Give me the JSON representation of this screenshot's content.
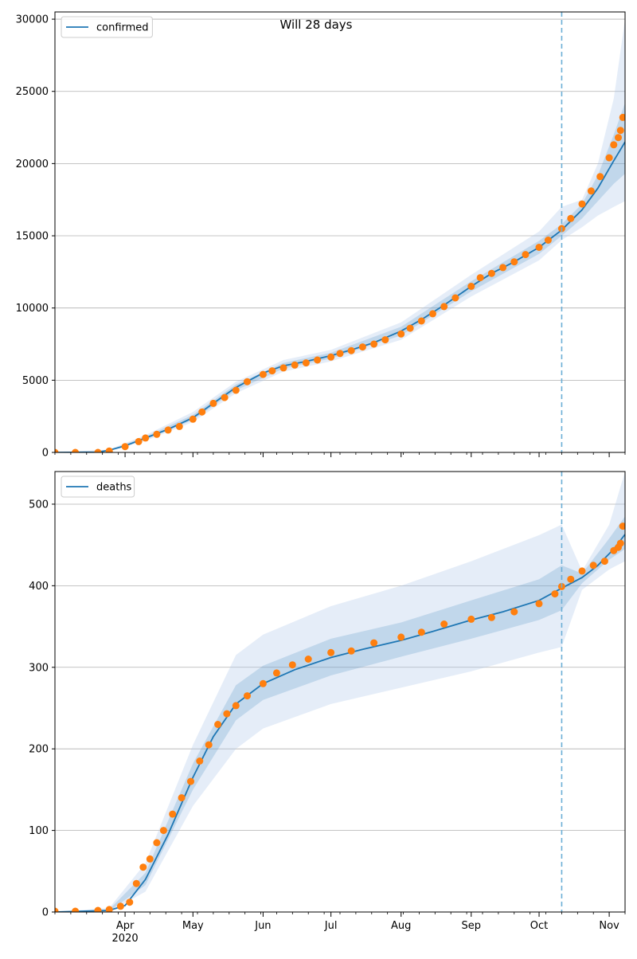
{
  "figure": {
    "suptitle": "Will 28 days"
  },
  "chart_data": [
    {
      "type": "line",
      "panel": "top",
      "title": "",
      "xlabel": "",
      "ylabel": "",
      "xlim": [
        "2020-03-01",
        "2020-11-08"
      ],
      "ylim": [
        0,
        30500
      ],
      "yticks": [
        0,
        5000,
        10000,
        15000,
        20000,
        25000,
        30000
      ],
      "ytick_labels": [
        "0",
        "5000",
        "10000",
        "15000",
        "20000",
        "25000",
        "30000"
      ],
      "grid": "horizontal",
      "legend": {
        "placement": "top-left",
        "entries": [
          "confirmed"
        ]
      },
      "vline": {
        "date": "2020-10-11",
        "style": "dashed"
      },
      "colors": {
        "model": "#1f77b4",
        "observed": "#ff7f0e",
        "band": "#aec7e8",
        "vline": "#6baed6"
      },
      "series": [
        {
          "name": "confirmed",
          "kind": "model",
          "points": [
            [
              "2020-03-01",
              0
            ],
            [
              "2020-03-20",
              20
            ],
            [
              "2020-03-25",
              150
            ],
            [
              "2020-04-01",
              450
            ],
            [
              "2020-04-10",
              1000
            ],
            [
              "2020-04-20",
              1600
            ],
            [
              "2020-05-01",
              2400
            ],
            [
              "2020-05-10",
              3400
            ],
            [
              "2020-05-20",
              4500
            ],
            [
              "2020-06-01",
              5500
            ],
            [
              "2020-06-10",
              6000
            ],
            [
              "2020-06-20",
              6300
            ],
            [
              "2020-07-01",
              6700
            ],
            [
              "2020-07-10",
              7100
            ],
            [
              "2020-07-20",
              7600
            ],
            [
              "2020-08-01",
              8400
            ],
            [
              "2020-08-10",
              9200
            ],
            [
              "2020-08-20",
              10200
            ],
            [
              "2020-09-01",
              11500
            ],
            [
              "2020-09-10",
              12400
            ],
            [
              "2020-09-20",
              13200
            ],
            [
              "2020-10-01",
              14200
            ],
            [
              "2020-10-11",
              15400
            ],
            [
              "2020-10-20",
              16800
            ],
            [
              "2020-10-27",
              18300
            ],
            [
              "2020-11-03",
              20200
            ],
            [
              "2020-11-08",
              21500
            ]
          ],
          "band_outer": [
            [
              "2020-03-01",
              0,
              0
            ],
            [
              "2020-03-25",
              100,
              200
            ],
            [
              "2020-04-10",
              800,
              1200
            ],
            [
              "2020-05-01",
              2100,
              2800
            ],
            [
              "2020-05-20",
              4100,
              4900
            ],
            [
              "2020-06-10",
              5600,
              6400
            ],
            [
              "2020-07-01",
              6300,
              7100
            ],
            [
              "2020-08-01",
              7800,
              9000
            ],
            [
              "2020-09-01",
              10800,
              12300
            ],
            [
              "2020-10-01",
              13300,
              15300
            ],
            [
              "2020-10-11",
              14700,
              17000
            ],
            [
              "2020-10-20",
              15600,
              17500
            ],
            [
              "2020-10-27",
              16400,
              20000
            ],
            [
              "2020-11-03",
              17000,
              24500
            ],
            [
              "2020-11-08",
              17400,
              30000
            ]
          ],
          "band_inner": [
            [
              "2020-03-01",
              0,
              0
            ],
            [
              "2020-03-25",
              130,
              170
            ],
            [
              "2020-04-10",
              900,
              1100
            ],
            [
              "2020-05-01",
              2250,
              2600
            ],
            [
              "2020-05-20",
              4300,
              4700
            ],
            [
              "2020-06-10",
              5800,
              6200
            ],
            [
              "2020-07-01",
              6500,
              6900
            ],
            [
              "2020-08-01",
              8100,
              8700
            ],
            [
              "2020-09-01",
              11150,
              11850
            ],
            [
              "2020-10-01",
              13750,
              14650
            ],
            [
              "2020-10-11",
              15000,
              15800
            ],
            [
              "2020-10-20",
              16200,
              17200
            ],
            [
              "2020-10-27",
              17400,
              19200
            ],
            [
              "2020-11-03",
              18600,
              22000
            ],
            [
              "2020-11-08",
              19300,
              24200
            ]
          ]
        },
        {
          "name": "",
          "kind": "observed",
          "points": [
            [
              "2020-03-01",
              0
            ],
            [
              "2020-03-10",
              0
            ],
            [
              "2020-03-20",
              0
            ],
            [
              "2020-03-25",
              100
            ],
            [
              "2020-04-01",
              400
            ],
            [
              "2020-04-07",
              750
            ],
            [
              "2020-04-10",
              1000
            ],
            [
              "2020-04-15",
              1250
            ],
            [
              "2020-04-20",
              1550
            ],
            [
              "2020-04-25",
              1800
            ],
            [
              "2020-05-01",
              2300
            ],
            [
              "2020-05-05",
              2800
            ],
            [
              "2020-05-10",
              3400
            ],
            [
              "2020-05-15",
              3800
            ],
            [
              "2020-05-20",
              4300
            ],
            [
              "2020-05-25",
              4900
            ],
            [
              "2020-06-01",
              5400
            ],
            [
              "2020-06-05",
              5650
            ],
            [
              "2020-06-10",
              5850
            ],
            [
              "2020-06-15",
              6050
            ],
            [
              "2020-06-20",
              6200
            ],
            [
              "2020-06-25",
              6400
            ],
            [
              "2020-07-01",
              6600
            ],
            [
              "2020-07-05",
              6850
            ],
            [
              "2020-07-10",
              7050
            ],
            [
              "2020-07-15",
              7300
            ],
            [
              "2020-07-20",
              7500
            ],
            [
              "2020-07-25",
              7800
            ],
            [
              "2020-08-01",
              8200
            ],
            [
              "2020-08-05",
              8600
            ],
            [
              "2020-08-10",
              9100
            ],
            [
              "2020-08-15",
              9600
            ],
            [
              "2020-08-20",
              10100
            ],
            [
              "2020-08-25",
              10700
            ],
            [
              "2020-09-01",
              11500
            ],
            [
              "2020-09-05",
              12100
            ],
            [
              "2020-09-10",
              12400
            ],
            [
              "2020-09-15",
              12800
            ],
            [
              "2020-09-20",
              13200
            ],
            [
              "2020-09-25",
              13700
            ],
            [
              "2020-10-01",
              14200
            ],
            [
              "2020-10-05",
              14700
            ],
            [
              "2020-10-11",
              15500
            ],
            [
              "2020-10-15",
              16200
            ],
            [
              "2020-10-20",
              17200
            ],
            [
              "2020-10-24",
              18100
            ],
            [
              "2020-10-28",
              19100
            ],
            [
              "2020-11-01",
              20400
            ],
            [
              "2020-11-03",
              21300
            ],
            [
              "2020-11-05",
              21800
            ],
            [
              "2020-11-06",
              22300
            ],
            [
              "2020-11-07",
              23200
            ]
          ]
        }
      ]
    },
    {
      "type": "line",
      "panel": "bottom",
      "title": "",
      "xlabel": "",
      "ylabel": "",
      "xlim": [
        "2020-03-01",
        "2020-11-08"
      ],
      "ylim": [
        0,
        540
      ],
      "yticks": [
        0,
        100,
        200,
        300,
        400,
        500
      ],
      "ytick_labels": [
        "0",
        "100",
        "200",
        "300",
        "400",
        "500"
      ],
      "xticks": [
        "2020-04-01",
        "2020-05-01",
        "2020-06-01",
        "2020-07-01",
        "2020-08-01",
        "2020-09-01",
        "2020-10-01",
        "2020-11-01"
      ],
      "xtick_labels": [
        "Apr\n2020",
        "May",
        "Jun",
        "Jul",
        "Aug",
        "Sep",
        "Oct",
        "Nov"
      ],
      "grid": "horizontal",
      "legend": {
        "placement": "top-left",
        "entries": [
          "deaths"
        ]
      },
      "vline": {
        "date": "2020-10-11",
        "style": "dashed"
      },
      "colors": {
        "model": "#1f77b4",
        "observed": "#ff7f0e",
        "band": "#aec7e8",
        "vline": "#6baed6"
      },
      "series": [
        {
          "name": "deaths",
          "kind": "model",
          "points": [
            [
              "2020-03-01",
              0
            ],
            [
              "2020-03-25",
              2
            ],
            [
              "2020-04-01",
              8
            ],
            [
              "2020-04-10",
              40
            ],
            [
              "2020-04-20",
              95
            ],
            [
              "2020-05-01",
              165
            ],
            [
              "2020-05-10",
              215
            ],
            [
              "2020-05-20",
              255
            ],
            [
              "2020-06-01",
              280
            ],
            [
              "2020-06-15",
              297
            ],
            [
              "2020-07-01",
              312
            ],
            [
              "2020-07-15",
              322
            ],
            [
              "2020-08-01",
              333
            ],
            [
              "2020-08-15",
              344
            ],
            [
              "2020-09-01",
              358
            ],
            [
              "2020-09-15",
              368
            ],
            [
              "2020-10-01",
              382
            ],
            [
              "2020-10-11",
              397
            ],
            [
              "2020-10-20",
              410
            ],
            [
              "2020-10-27",
              425
            ],
            [
              "2020-11-03",
              445
            ],
            [
              "2020-11-08",
              463
            ]
          ],
          "band_outer": [
            [
              "2020-03-01",
              0,
              0
            ],
            [
              "2020-03-25",
              0,
              5
            ],
            [
              "2020-04-10",
              25,
              60
            ],
            [
              "2020-05-01",
              130,
              205
            ],
            [
              "2020-05-20",
              200,
              315
            ],
            [
              "2020-06-01",
              225,
              340
            ],
            [
              "2020-07-01",
              255,
              375
            ],
            [
              "2020-08-01",
              275,
              400
            ],
            [
              "2020-09-01",
              295,
              430
            ],
            [
              "2020-10-01",
              318,
              462
            ],
            [
              "2020-10-11",
              325,
              475
            ],
            [
              "2020-10-20",
              395,
              418
            ],
            [
              "2020-11-01",
              420,
              475
            ],
            [
              "2020-11-08",
              430,
              540
            ]
          ],
          "band_inner": [
            [
              "2020-03-01",
              0,
              0
            ],
            [
              "2020-03-25",
              1,
              3
            ],
            [
              "2020-04-10",
              33,
              48
            ],
            [
              "2020-05-01",
              150,
              182
            ],
            [
              "2020-05-20",
              235,
              278
            ],
            [
              "2020-06-01",
              260,
              302
            ],
            [
              "2020-07-01",
              290,
              335
            ],
            [
              "2020-08-01",
              313,
              355
            ],
            [
              "2020-09-01",
              335,
              382
            ],
            [
              "2020-10-01",
              358,
              408
            ],
            [
              "2020-10-11",
              370,
              425
            ],
            [
              "2020-10-20",
              403,
              415
            ],
            [
              "2020-11-01",
              432,
              458
            ],
            [
              "2020-11-08",
              445,
              485
            ]
          ]
        },
        {
          "name": "",
          "kind": "observed",
          "points": [
            [
              "2020-03-01",
              1
            ],
            [
              "2020-03-10",
              1
            ],
            [
              "2020-03-20",
              2
            ],
            [
              "2020-03-25",
              3
            ],
            [
              "2020-03-30",
              7
            ],
            [
              "2020-04-03",
              12
            ],
            [
              "2020-04-06",
              35
            ],
            [
              "2020-04-09",
              55
            ],
            [
              "2020-04-12",
              65
            ],
            [
              "2020-04-15",
              85
            ],
            [
              "2020-04-18",
              100
            ],
            [
              "2020-04-22",
              120
            ],
            [
              "2020-04-26",
              140
            ],
            [
              "2020-04-30",
              160
            ],
            [
              "2020-05-04",
              185
            ],
            [
              "2020-05-08",
              205
            ],
            [
              "2020-05-12",
              230
            ],
            [
              "2020-05-16",
              243
            ],
            [
              "2020-05-20",
              253
            ],
            [
              "2020-05-25",
              265
            ],
            [
              "2020-06-01",
              280
            ],
            [
              "2020-06-07",
              293
            ],
            [
              "2020-06-14",
              303
            ],
            [
              "2020-06-21",
              310
            ],
            [
              "2020-07-01",
              318
            ],
            [
              "2020-07-10",
              320
            ],
            [
              "2020-07-20",
              330
            ],
            [
              "2020-08-01",
              337
            ],
            [
              "2020-08-10",
              343
            ],
            [
              "2020-08-20",
              353
            ],
            [
              "2020-09-01",
              359
            ],
            [
              "2020-09-10",
              361
            ],
            [
              "2020-09-20",
              368
            ],
            [
              "2020-10-01",
              378
            ],
            [
              "2020-10-08",
              390
            ],
            [
              "2020-10-11",
              399
            ],
            [
              "2020-10-15",
              408
            ],
            [
              "2020-10-20",
              418
            ],
            [
              "2020-10-25",
              425
            ],
            [
              "2020-10-30",
              430
            ],
            [
              "2020-11-03",
              443
            ],
            [
              "2020-11-05",
              447
            ],
            [
              "2020-11-06",
              452
            ],
            [
              "2020-11-07",
              473
            ]
          ]
        }
      ]
    }
  ]
}
